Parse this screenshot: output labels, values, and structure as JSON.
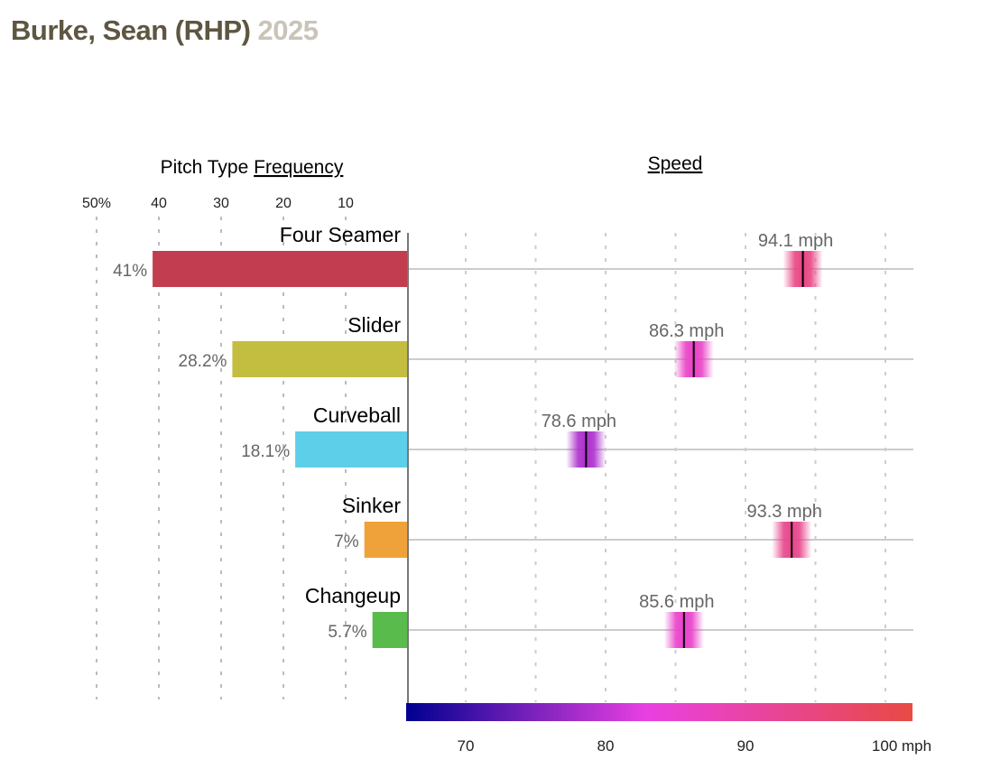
{
  "header": {
    "player": "Burke, Sean (RHP)",
    "year": "2025"
  },
  "chart_data": [
    {
      "type": "bar",
      "title_prefix": "Pitch Type",
      "title_link": "Frequency",
      "orientation": "horizontal-leftward",
      "categories": [
        "Four Seamer",
        "Slider",
        "Curveball",
        "Sinker",
        "Changeup"
      ],
      "values": [
        41,
        28.2,
        18.1,
        7,
        5.7
      ],
      "value_labels": [
        "41%",
        "28.2%",
        "18.1%",
        "7%",
        "5.7%"
      ],
      "colors": [
        "#c23d4f",
        "#c3be3f",
        "#5ecfe8",
        "#f0a23a",
        "#58bb4b"
      ],
      "xlim": [
        0,
        50
      ],
      "ticks": [
        10,
        20,
        30,
        40,
        50
      ],
      "tick_labels": [
        "10",
        "20",
        "30",
        "40",
        "50%"
      ],
      "grid": true
    },
    {
      "type": "scatter",
      "title": "Speed",
      "unit": "mph",
      "categories": [
        "Four Seamer",
        "Slider",
        "Curveball",
        "Sinker",
        "Changeup"
      ],
      "values": [
        94.1,
        86.3,
        78.6,
        93.3,
        85.6
      ],
      "value_labels": [
        "94.1 mph",
        "86.3 mph",
        "78.6 mph",
        "93.3 mph",
        "85.6 mph"
      ],
      "xlim": [
        65.9,
        101.9
      ],
      "ticks": [
        70,
        80,
        90,
        100
      ],
      "tick_labels": [
        "70",
        "80",
        "90",
        "100 mph"
      ],
      "colorscale": [
        [
          65.9,
          "#000090"
        ],
        [
          83,
          "#e940e2"
        ],
        [
          101.9,
          "#e84a44"
        ]
      ],
      "grid": true
    }
  ]
}
